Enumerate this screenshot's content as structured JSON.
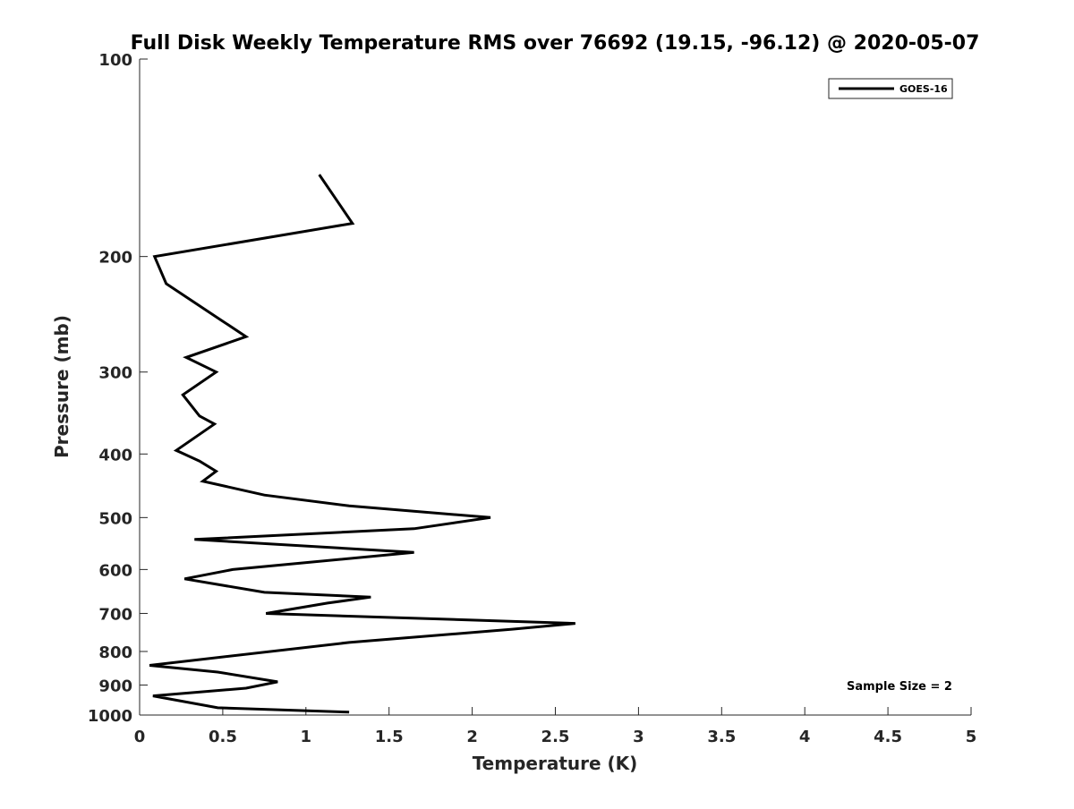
{
  "chart_data": {
    "type": "line",
    "title": "Full Disk Weekly Temperature RMS over 76692 (19.15, -96.12) @ 2020-05-07",
    "xlabel": "Temperature (K)",
    "ylabel": "Pressure (mb)",
    "xlim": [
      0,
      5
    ],
    "ylim": [
      100,
      1000
    ],
    "y_scale": "log",
    "y_reversed": true,
    "grid": false,
    "legend_position": "top-right",
    "x_ticks": [
      0,
      0.5,
      1,
      1.5,
      2,
      2.5,
      3,
      3.5,
      4,
      4.5,
      5
    ],
    "x_tick_labels": [
      "0",
      "0.5",
      "1",
      "1.5",
      "2",
      "2.5",
      "3",
      "3.5",
      "4",
      "4.5",
      "5"
    ],
    "y_ticks": [
      100,
      200,
      300,
      400,
      500,
      600,
      700,
      800,
      900,
      1000
    ],
    "y_tick_labels": [
      "100",
      "200",
      "300",
      "400",
      "500",
      "600",
      "700",
      "800",
      "900",
      "1000"
    ],
    "series": [
      {
        "name": "GOES-16",
        "color": "#000000",
        "points": [
          [
            1.08,
            150
          ],
          [
            1.28,
            178
          ],
          [
            0.09,
            200
          ],
          [
            0.16,
            220
          ],
          [
            0.49,
            250
          ],
          [
            0.64,
            265
          ],
          [
            0.28,
            285
          ],
          [
            0.46,
            300
          ],
          [
            0.26,
            325
          ],
          [
            0.36,
            350
          ],
          [
            0.45,
            360
          ],
          [
            0.22,
            395
          ],
          [
            0.36,
            410
          ],
          [
            0.46,
            425
          ],
          [
            0.38,
            440
          ],
          [
            0.75,
            462
          ],
          [
            1.26,
            480
          ],
          [
            2.11,
            500
          ],
          [
            1.65,
            520
          ],
          [
            0.33,
            540
          ],
          [
            1.65,
            565
          ],
          [
            0.56,
            600
          ],
          [
            0.27,
            620
          ],
          [
            0.75,
            650
          ],
          [
            1.39,
            661
          ],
          [
            1.13,
            675
          ],
          [
            0.76,
            700
          ],
          [
            2.62,
            725
          ],
          [
            2.24,
            740
          ],
          [
            1.26,
            775
          ],
          [
            0.06,
            840
          ],
          [
            0.47,
            860
          ],
          [
            0.83,
            890
          ],
          [
            0.64,
            910
          ],
          [
            0.08,
            935
          ],
          [
            0.47,
            975
          ],
          [
            1.26,
            990
          ]
        ]
      }
    ],
    "annotations": [
      "Sample Size = 2"
    ]
  }
}
